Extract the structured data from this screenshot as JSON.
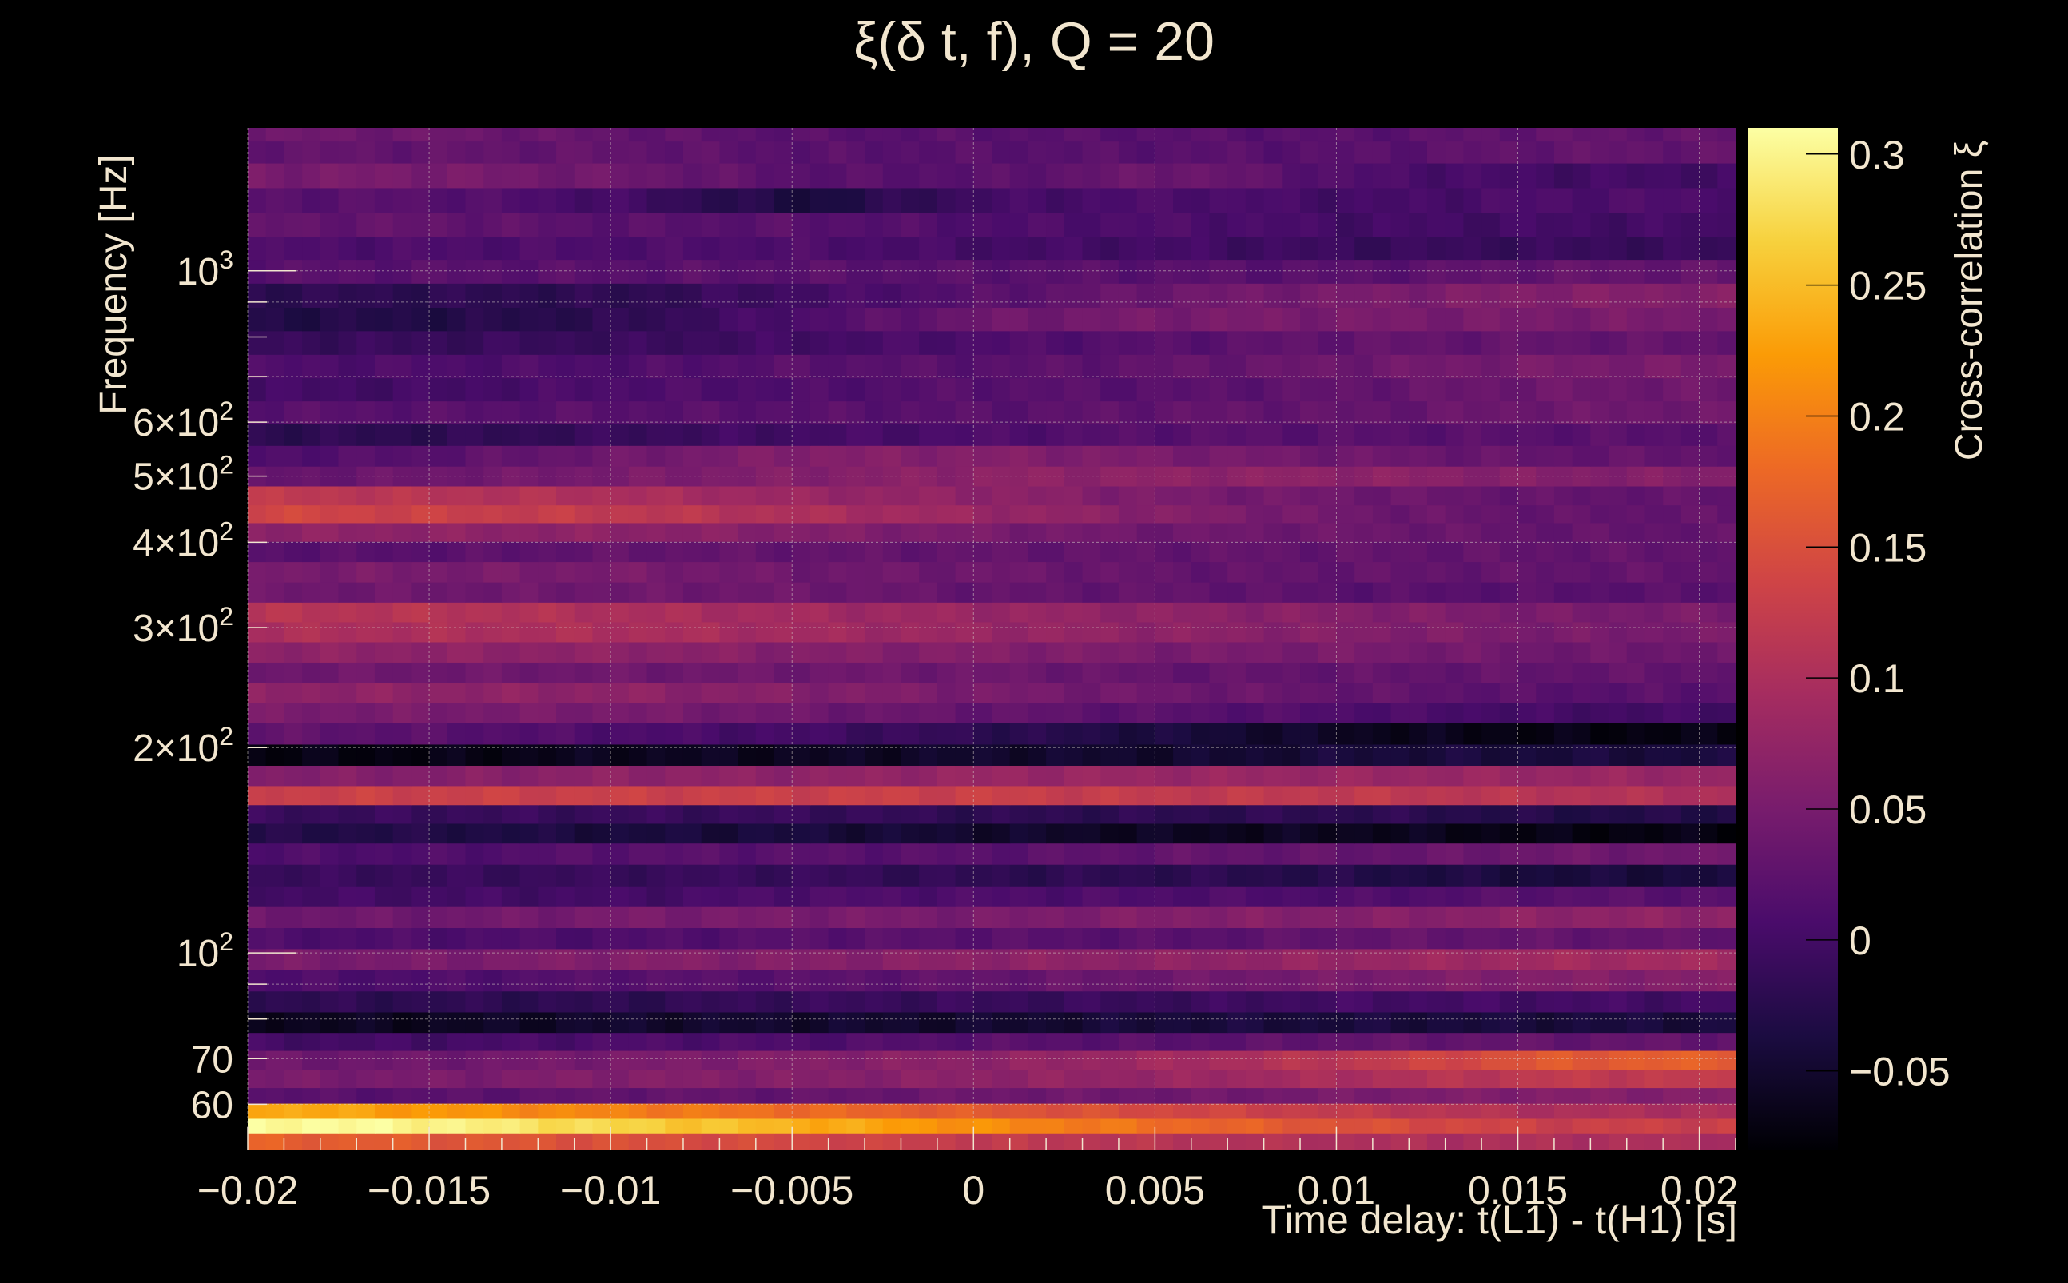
{
  "chart_data": {
    "type": "heatmap",
    "title": "ξ(δ t, f), Q = 20",
    "xlabel": "Time delay: t(L1) - t(H1) [s]",
    "ylabel": "Frequency [Hz]",
    "colorbar_label": "Cross-correlation ξ",
    "xlim": [
      -0.02,
      0.021
    ],
    "ylim": [
      51.5,
      1620
    ],
    "y_scale": "log",
    "grid": true,
    "x_ticks": [
      {
        "value": -0.02,
        "label": "−0.02"
      },
      {
        "value": -0.015,
        "label": "−0.015"
      },
      {
        "value": -0.01,
        "label": "−0.01"
      },
      {
        "value": -0.005,
        "label": "−0.005"
      },
      {
        "value": 0,
        "label": "0"
      },
      {
        "value": 0.005,
        "label": "0.005"
      },
      {
        "value": 0.01,
        "label": "0.01"
      },
      {
        "value": 0.015,
        "label": "0.015"
      },
      {
        "value": 0.02,
        "label": "0.02"
      }
    ],
    "y_ticks": [
      {
        "value": 60,
        "label": "60"
      },
      {
        "value": 70,
        "label": "70"
      },
      {
        "value": 100,
        "base": "10",
        "exp": "2"
      },
      {
        "value": 200,
        "base": "2×10",
        "exp": "2"
      },
      {
        "value": 300,
        "base": "3×10",
        "exp": "2"
      },
      {
        "value": 400,
        "base": "4×10",
        "exp": "2"
      },
      {
        "value": 500,
        "base": "5×10",
        "exp": "2"
      },
      {
        "value": 600,
        "base": "6×10",
        "exp": "2"
      },
      {
        "value": 1000,
        "base": "10",
        "exp": "3"
      }
    ],
    "colorbar": {
      "range": [
        -0.08,
        0.31
      ],
      "ticks": [
        {
          "value": -0.05,
          "label": "−0.05"
        },
        {
          "value": 0,
          "label": "0"
        },
        {
          "value": 0.05,
          "label": "0.05"
        },
        {
          "value": 0.1,
          "label": "0.1"
        },
        {
          "value": 0.15,
          "label": "0.15"
        },
        {
          "value": 0.2,
          "label": "0.2"
        },
        {
          "value": 0.25,
          "label": "0.25"
        },
        {
          "value": 0.3,
          "label": "0.3"
        }
      ],
      "colormap": "inferno-like",
      "stops": [
        "#000004",
        "#1b0c41",
        "#4a0c6b",
        "#781c6d",
        "#a52c60",
        "#cf4446",
        "#ed6925",
        "#fb9b06",
        "#f7d13d",
        "#fcffa4"
      ]
    },
    "frequency_bands": [
      {
        "f": 53,
        "values": [
          0.17,
          0.16,
          0.15,
          0.14,
          0.12,
          0.11,
          0.1,
          0.1,
          0.1
        ]
      },
      {
        "f": 56,
        "values": [
          0.31,
          0.3,
          0.27,
          0.24,
          0.21,
          0.18,
          0.15,
          0.13,
          0.13
        ]
      },
      {
        "f": 58.5,
        "values": [
          0.24,
          0.22,
          0.2,
          0.18,
          0.16,
          0.14,
          0.12,
          0.1,
          0.1
        ]
      },
      {
        "f": 62,
        "values": [
          0.02,
          0.02,
          0.03,
          0.03,
          0.04,
          0.04,
          0.05,
          0.06,
          0.06
        ]
      },
      {
        "f": 65,
        "values": [
          0.05,
          0.05,
          0.06,
          0.06,
          0.07,
          0.08,
          0.1,
          0.12,
          0.12
        ]
      },
      {
        "f": 70,
        "values": [
          0.04,
          0.04,
          0.05,
          0.06,
          0.07,
          0.09,
          0.12,
          0.16,
          0.17
        ]
      },
      {
        "f": 74,
        "values": [
          0.0,
          0.0,
          0.01,
          0.01,
          0.02,
          0.02,
          0.03,
          0.03,
          0.03
        ]
      },
      {
        "f": 79,
        "values": [
          -0.06,
          -0.06,
          -0.05,
          -0.05,
          -0.05,
          -0.04,
          -0.04,
          -0.04,
          -0.04
        ]
      },
      {
        "f": 85,
        "values": [
          -0.02,
          -0.02,
          -0.02,
          -0.01,
          -0.01,
          -0.01,
          0.0,
          0.0,
          0.0
        ]
      },
      {
        "f": 91,
        "values": [
          0.01,
          0.01,
          0.02,
          0.02,
          0.03,
          0.04,
          0.05,
          0.06,
          0.06
        ]
      },
      {
        "f": 98,
        "values": [
          0.05,
          0.05,
          0.06,
          0.06,
          0.07,
          0.07,
          0.08,
          0.09,
          0.09
        ]
      },
      {
        "f": 105,
        "values": [
          0.01,
          0.01,
          0.01,
          0.02,
          0.02,
          0.02,
          0.03,
          0.03,
          0.03
        ]
      },
      {
        "f": 113,
        "values": [
          0.04,
          0.04,
          0.05,
          0.05,
          0.05,
          0.06,
          0.06,
          0.07,
          0.07
        ]
      },
      {
        "f": 121,
        "values": [
          0.0,
          0.0,
          0.0,
          0.01,
          0.01,
          0.01,
          0.01,
          0.02,
          0.02
        ]
      },
      {
        "f": 130,
        "values": [
          -0.01,
          -0.01,
          -0.01,
          -0.01,
          -0.02,
          -0.02,
          -0.03,
          -0.04,
          -0.04
        ]
      },
      {
        "f": 140,
        "values": [
          0.01,
          0.01,
          0.02,
          0.02,
          0.02,
          0.03,
          0.03,
          0.04,
          0.04
        ]
      },
      {
        "f": 150,
        "values": [
          -0.03,
          -0.03,
          -0.04,
          -0.04,
          -0.05,
          -0.06,
          -0.06,
          -0.07,
          -0.07
        ]
      },
      {
        "f": 160,
        "values": [
          -0.01,
          -0.01,
          -0.01,
          -0.01,
          -0.02,
          -0.02,
          -0.02,
          -0.03,
          -0.03
        ]
      },
      {
        "f": 170,
        "values": [
          0.13,
          0.13,
          0.13,
          0.13,
          0.13,
          0.12,
          0.12,
          0.11,
          0.1
        ]
      },
      {
        "f": 182,
        "values": [
          0.06,
          0.06,
          0.07,
          0.07,
          0.08,
          0.08,
          0.08,
          0.08,
          0.08
        ]
      },
      {
        "f": 195,
        "values": [
          -0.07,
          -0.07,
          -0.06,
          -0.06,
          -0.05,
          -0.05,
          -0.04,
          -0.04,
          -0.04
        ]
      },
      {
        "f": 210,
        "values": [
          0.03,
          0.02,
          0.01,
          0.0,
          -0.02,
          -0.04,
          -0.06,
          -0.07,
          -0.07
        ]
      },
      {
        "f": 225,
        "values": [
          0.05,
          0.05,
          0.05,
          0.04,
          0.03,
          0.02,
          0.01,
          0.0,
          0.0
        ]
      },
      {
        "f": 241,
        "values": [
          0.07,
          0.07,
          0.07,
          0.06,
          0.05,
          0.04,
          0.03,
          0.02,
          0.02
        ]
      },
      {
        "f": 258,
        "values": [
          0.04,
          0.04,
          0.04,
          0.04,
          0.04,
          0.03,
          0.03,
          0.03,
          0.03
        ]
      },
      {
        "f": 276,
        "values": [
          0.07,
          0.07,
          0.07,
          0.06,
          0.06,
          0.05,
          0.05,
          0.04,
          0.04
        ]
      },
      {
        "f": 296,
        "values": [
          0.1,
          0.1,
          0.1,
          0.09,
          0.08,
          0.07,
          0.06,
          0.05,
          0.05
        ]
      },
      {
        "f": 316,
        "values": [
          0.11,
          0.11,
          0.1,
          0.09,
          0.08,
          0.07,
          0.06,
          0.05,
          0.05
        ]
      },
      {
        "f": 338,
        "values": [
          0.04,
          0.04,
          0.04,
          0.04,
          0.03,
          0.03,
          0.02,
          0.02,
          0.02
        ]
      },
      {
        "f": 362,
        "values": [
          0.05,
          0.05,
          0.05,
          0.04,
          0.04,
          0.03,
          0.03,
          0.03,
          0.03
        ]
      },
      {
        "f": 388,
        "values": [
          0.02,
          0.02,
          0.03,
          0.03,
          0.03,
          0.03,
          0.03,
          0.03,
          0.03
        ]
      },
      {
        "f": 415,
        "values": [
          0.07,
          0.07,
          0.07,
          0.06,
          0.05,
          0.04,
          0.04,
          0.03,
          0.03
        ]
      },
      {
        "f": 440,
        "values": [
          0.14,
          0.13,
          0.12,
          0.1,
          0.08,
          0.06,
          0.04,
          0.03,
          0.03
        ]
      },
      {
        "f": 468,
        "values": [
          0.12,
          0.11,
          0.1,
          0.08,
          0.07,
          0.05,
          0.04,
          0.03,
          0.03
        ]
      },
      {
        "f": 500,
        "values": [
          0.03,
          0.04,
          0.05,
          0.06,
          0.07,
          0.07,
          0.07,
          0.06,
          0.06
        ]
      },
      {
        "f": 535,
        "values": [
          0.01,
          0.02,
          0.04,
          0.06,
          0.06,
          0.05,
          0.04,
          0.03,
          0.03
        ]
      },
      {
        "f": 575,
        "values": [
          -0.02,
          -0.02,
          -0.01,
          0.0,
          0.01,
          0.02,
          0.02,
          0.02,
          0.02
        ]
      },
      {
        "f": 620,
        "values": [
          0.02,
          0.02,
          0.02,
          0.02,
          0.02,
          0.03,
          0.03,
          0.04,
          0.04
        ]
      },
      {
        "f": 670,
        "values": [
          0.0,
          0.0,
          0.01,
          0.01,
          0.02,
          0.02,
          0.03,
          0.04,
          0.04
        ]
      },
      {
        "f": 725,
        "values": [
          0.01,
          0.01,
          0.01,
          0.02,
          0.02,
          0.03,
          0.04,
          0.05,
          0.05
        ]
      },
      {
        "f": 785,
        "values": [
          -0.01,
          -0.01,
          -0.01,
          0.0,
          0.01,
          0.02,
          0.03,
          0.03,
          0.03
        ]
      },
      {
        "f": 850,
        "values": [
          -0.03,
          -0.03,
          -0.02,
          0.01,
          0.04,
          0.05,
          0.05,
          0.05,
          0.05
        ]
      },
      {
        "f": 920,
        "values": [
          -0.02,
          -0.02,
          -0.02,
          0.0,
          0.02,
          0.04,
          0.05,
          0.06,
          0.06
        ]
      },
      {
        "f": 1000,
        "values": [
          0.02,
          0.02,
          0.02,
          0.02,
          0.02,
          0.02,
          0.02,
          0.03,
          0.03
        ]
      },
      {
        "f": 1080,
        "values": [
          0.01,
          0.01,
          0.01,
          0.01,
          0.0,
          0.0,
          -0.01,
          -0.01,
          -0.01
        ]
      },
      {
        "f": 1170,
        "values": [
          0.03,
          0.03,
          0.02,
          0.02,
          0.01,
          0.01,
          0.0,
          0.0,
          0.0
        ]
      },
      {
        "f": 1270,
        "values": [
          0.02,
          0.02,
          0.0,
          -0.04,
          0.0,
          0.01,
          0.0,
          0.01,
          0.01
        ]
      },
      {
        "f": 1380,
        "values": [
          0.05,
          0.05,
          0.04,
          0.02,
          0.02,
          0.04,
          0.01,
          0.0,
          0.0
        ]
      },
      {
        "f": 1500,
        "values": [
          0.03,
          0.03,
          0.03,
          0.02,
          0.02,
          0.02,
          0.02,
          0.03,
          0.03
        ]
      },
      {
        "f": 1600,
        "values": [
          0.04,
          0.04,
          0.03,
          0.02,
          0.02,
          0.02,
          0.02,
          0.03,
          0.03
        ]
      }
    ]
  }
}
